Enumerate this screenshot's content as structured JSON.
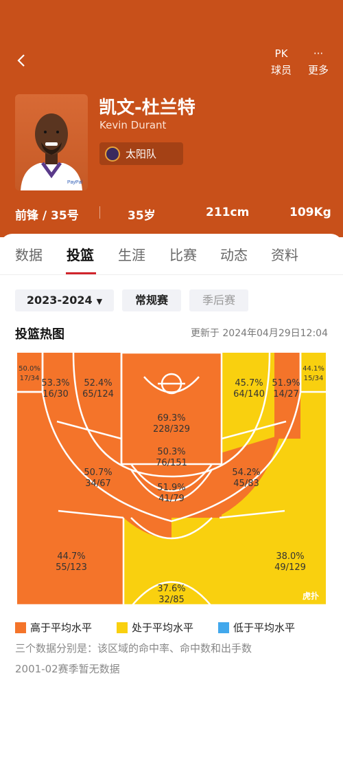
{
  "header": {
    "compare_label": "球员",
    "more_label": "更多",
    "compare_icon": "PK",
    "more_icon": "···"
  },
  "player": {
    "name_cn": "凯文-杜兰特",
    "name_en": "Kevin Durant",
    "team": "太阳队",
    "position_number": "前锋 / 35号",
    "age": "35岁",
    "height": "211cm",
    "weight": "109Kg"
  },
  "tabs": [
    "数据",
    "投篮",
    "生涯",
    "比赛",
    "动态",
    "资料"
  ],
  "filters": {
    "season": "2023-2024",
    "regular": "常规赛",
    "playoffs": "季后赛"
  },
  "heatmap": {
    "title": "投篮热图",
    "updated": "更新于 2024年04月29日12:04",
    "watermark": "虎扑",
    "colors": {
      "above": "#f4742a",
      "average": "#f9d00f",
      "below": "#42a8ec"
    },
    "zones": [
      {
        "pct": "50.0%",
        "made": "17/34"
      },
      {
        "pct": "53.3%",
        "made": "16/30"
      },
      {
        "pct": "52.4%",
        "made": "65/124"
      },
      {
        "pct": "45.7%",
        "made": "64/140"
      },
      {
        "pct": "51.9%",
        "made": "14/27"
      },
      {
        "pct": "44.1%",
        "made": "15/34"
      },
      {
        "pct": "69.3%",
        "made": "228/329"
      },
      {
        "pct": "50.3%",
        "made": "76/151"
      },
      {
        "pct": "50.7%",
        "made": "34/67"
      },
      {
        "pct": "54.2%",
        "made": "45/83"
      },
      {
        "pct": "51.9%",
        "made": "41/79"
      },
      {
        "pct": "44.7%",
        "made": "55/123"
      },
      {
        "pct": "38.0%",
        "made": "49/129"
      },
      {
        "pct": "37.6%",
        "made": "32/85"
      }
    ]
  },
  "legend": {
    "above": "高于平均水平",
    "average": "处于平均水平",
    "below": "低于平均水平"
  },
  "notes": {
    "explain": "三个数据分别是：该区域的命中率、命中数和出手数",
    "nodata": "2001-02赛季暂无数据"
  }
}
